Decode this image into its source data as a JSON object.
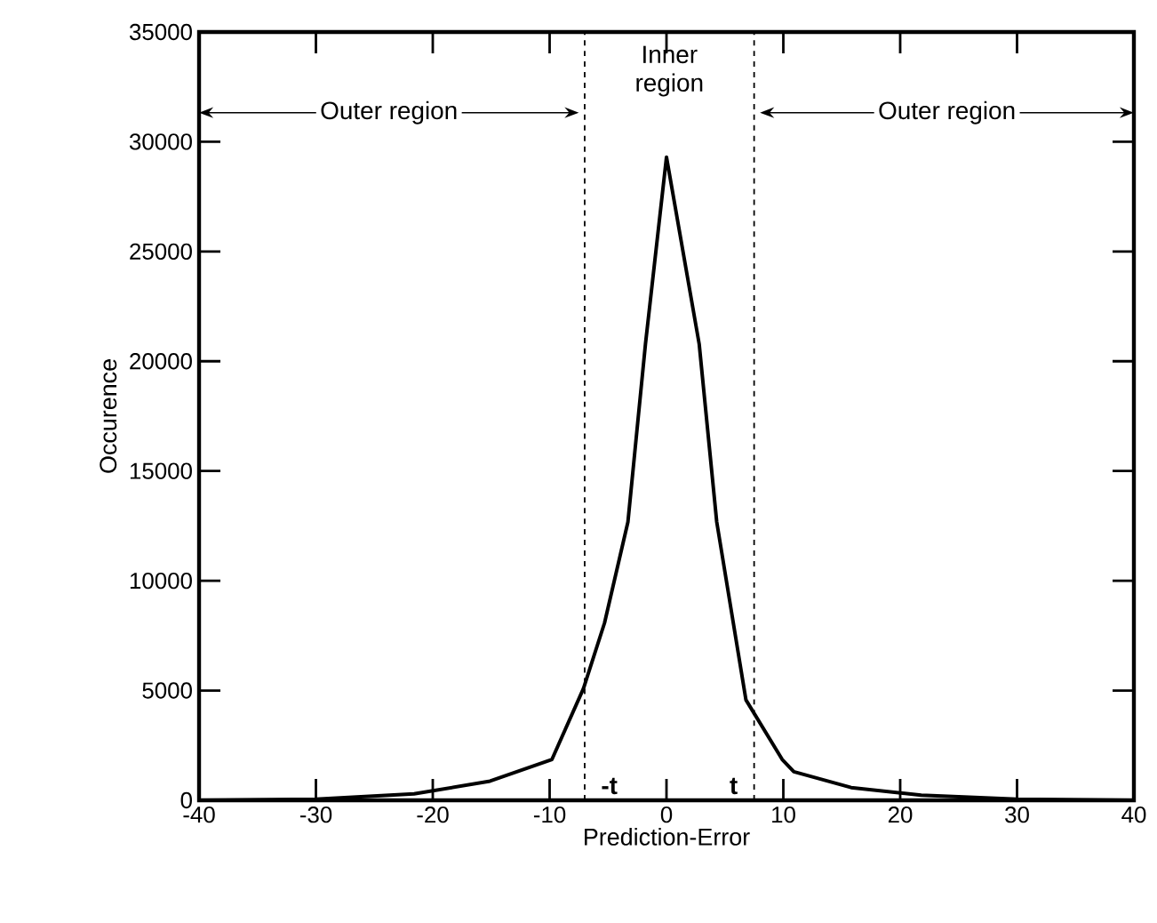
{
  "chart_data": {
    "type": "line",
    "xlabel": "Prediction-Error",
    "ylabel": "Occurence",
    "x": [
      -40,
      -30,
      -21.6,
      -15.1,
      -9.8,
      -7.1,
      -5.3,
      -3.3,
      -1.8,
      0,
      2.8,
      4.3,
      6.8,
      9.9,
      10.9,
      15.8,
      21.8,
      30,
      40
    ],
    "series": [
      {
        "color": "#000000",
        "values": [
          0,
          50,
          290,
          870,
          1860,
          5100,
          8080,
          12680,
          20780,
          29300,
          20780,
          12680,
          4570,
          1860,
          1300,
          580,
          230,
          50,
          0
        ]
      }
    ],
    "xlim": [
      -40,
      40
    ],
    "xticks": [
      -40,
      -30,
      -20,
      -10,
      0,
      10,
      20,
      30,
      40
    ],
    "ylim": [
      0,
      35000
    ],
    "yticks": [
      0,
      5000,
      10000,
      15000,
      20000,
      25000,
      30000,
      35000
    ],
    "grid": false,
    "marker": "none",
    "line_style": "solid",
    "ref_lines": [
      {
        "axis": "x",
        "value": -7,
        "label": "-t",
        "line_style": "dashed"
      },
      {
        "axis": "x",
        "value": 7.5,
        "label": "t",
        "line_style": "dashed"
      }
    ],
    "annotations": [
      "Outer region",
      "Inner region",
      "Outer region"
    ]
  }
}
